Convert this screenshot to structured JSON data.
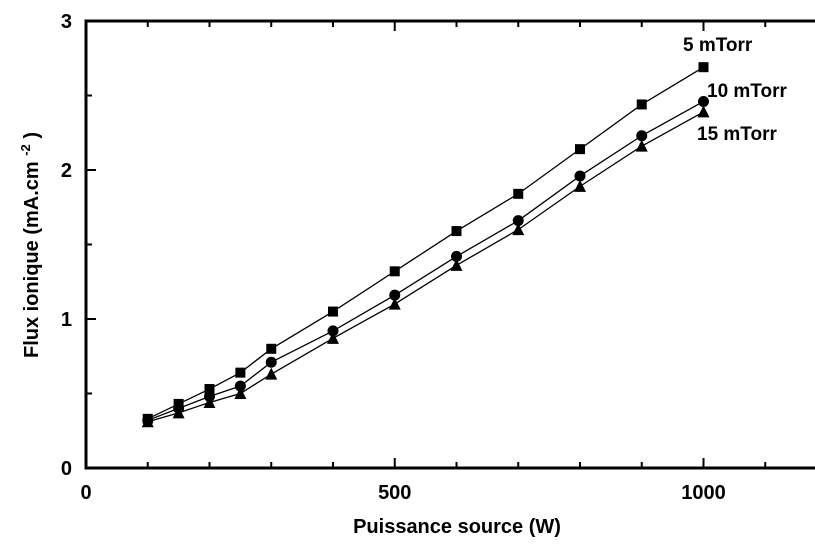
{
  "chart_data": {
    "type": "line",
    "xlabel": "Puissance source (W)",
    "ylabel": {
      "main": "Flux ionique (mA.cm",
      "superscript": "-2",
      "close": ")"
    },
    "xlim": [
      0,
      1200
    ],
    "ylim": [
      0,
      3
    ],
    "x_ticks": [
      0,
      500,
      1000
    ],
    "y_ticks": [
      0,
      1,
      2,
      3
    ],
    "x_minor_ticks": [
      100,
      200,
      300,
      400,
      600,
      700,
      800,
      900,
      1100
    ],
    "y_minor_ticks": [
      0.5,
      1.5,
      2.5
    ],
    "grid": false,
    "x": [
      100,
      150,
      200,
      250,
      300,
      400,
      500,
      600,
      700,
      800,
      900,
      1000
    ],
    "series": [
      {
        "name": "5 mTorr",
        "marker": "square",
        "color": "#000000",
        "values": [
          0.33,
          0.43,
          0.53,
          0.64,
          0.8,
          1.05,
          1.32,
          1.59,
          1.84,
          2.14,
          2.44,
          2.69
        ]
      },
      {
        "name": "10 mTorr",
        "marker": "circle",
        "color": "#000000",
        "values": [
          0.32,
          0.4,
          0.48,
          0.55,
          0.71,
          0.92,
          1.16,
          1.42,
          1.66,
          1.96,
          2.23,
          2.46
        ]
      },
      {
        "name": "15 mTorr",
        "marker": "triangle",
        "color": "#000000",
        "values": [
          0.31,
          0.37,
          0.44,
          0.5,
          0.63,
          0.87,
          1.1,
          1.36,
          1.6,
          1.89,
          2.16,
          2.39
        ]
      }
    ]
  }
}
